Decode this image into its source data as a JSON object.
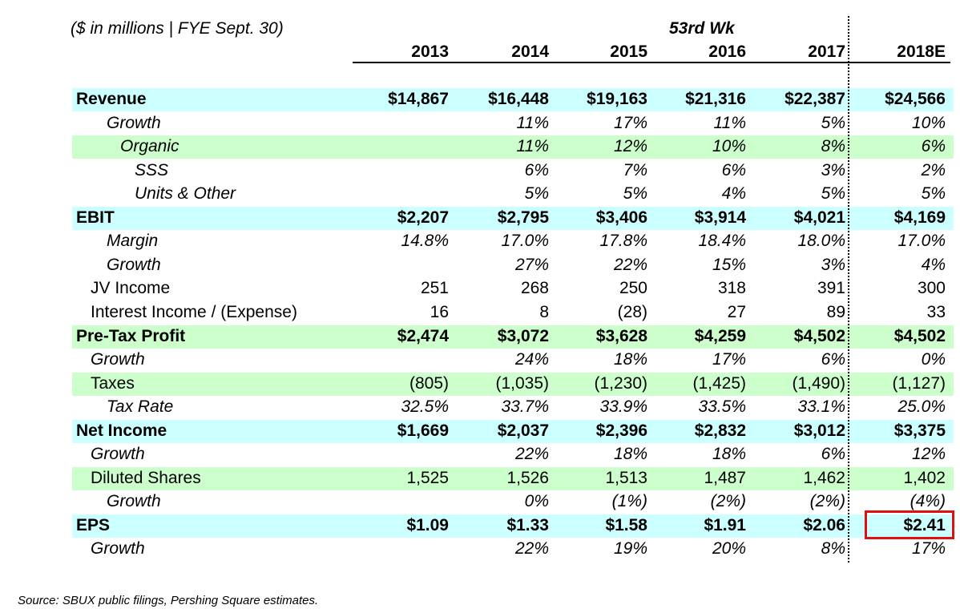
{
  "note": "($ in millions | FYE Sept. 30)",
  "week_note": "53rd Wk",
  "columns": [
    "2013",
    "2014",
    "2015",
    "2016",
    "2017",
    "2018E"
  ],
  "rows": [
    {
      "label": "Revenue",
      "cells": [
        "$14,867",
        "$16,448",
        "$19,163",
        "$21,316",
        "$22,387",
        "$24,566"
      ]
    },
    {
      "label": "Growth",
      "cells": [
        null,
        "11%",
        "17%",
        "11%",
        "5%",
        "10%"
      ]
    },
    {
      "label": "Organic",
      "cells": [
        null,
        "11%",
        "12%",
        "10%",
        "8%",
        "6%"
      ]
    },
    {
      "label": "SSS",
      "cells": [
        null,
        "6%",
        "7%",
        "6%",
        "3%",
        "2%"
      ]
    },
    {
      "label": "Units & Other",
      "cells": [
        null,
        "5%",
        "5%",
        "4%",
        "5%",
        "5%"
      ]
    },
    {
      "label": "EBIT",
      "cells": [
        "$2,207",
        "$2,795",
        "$3,406",
        "$3,914",
        "$4,021",
        "$4,169"
      ]
    },
    {
      "label": "Margin",
      "cells": [
        "14.8%",
        "17.0%",
        "17.8%",
        "18.4%",
        "18.0%",
        "17.0%"
      ]
    },
    {
      "label": "Growth",
      "cells": [
        null,
        "27%",
        "22%",
        "15%",
        "3%",
        "4%"
      ]
    },
    {
      "label": "JV Income",
      "cells": [
        "251",
        "268",
        "250",
        "318",
        "391",
        "300"
      ]
    },
    {
      "label": "Interest Income / (Expense)",
      "cells": [
        "16",
        "8",
        "(28)",
        "27",
        "89",
        "33"
      ]
    },
    {
      "label": "Pre-Tax Profit",
      "cells": [
        "$2,474",
        "$3,072",
        "$3,628",
        "$4,259",
        "$4,502",
        "$4,502"
      ]
    },
    {
      "label": "Growth",
      "cells": [
        null,
        "24%",
        "18%",
        "17%",
        "6%",
        "0%"
      ]
    },
    {
      "label": "Taxes",
      "cells": [
        "(805)",
        "(1,035)",
        "(1,230)",
        "(1,425)",
        "(1,490)",
        "(1,127)"
      ]
    },
    {
      "label": "Tax Rate",
      "cells": [
        "32.5%",
        "33.7%",
        "33.9%",
        "33.5%",
        "33.1%",
        "25.0%"
      ]
    },
    {
      "label": "Net Income",
      "cells": [
        "$1,669",
        "$2,037",
        "$2,396",
        "$2,832",
        "$3,012",
        "$3,375"
      ]
    },
    {
      "label": "Growth",
      "cells": [
        null,
        "22%",
        "18%",
        "18%",
        "6%",
        "12%"
      ]
    },
    {
      "label": "Diluted Shares",
      "cells": [
        "1,525",
        "1,526",
        "1,513",
        "1,487",
        "1,462",
        "1,402"
      ]
    },
    {
      "label": "Growth",
      "cells": [
        null,
        "0%",
        "(1%)",
        "(2%)",
        "(2%)",
        "(4%)"
      ]
    },
    {
      "label": "EPS",
      "cells": [
        "$1.09",
        "$1.33",
        "$1.58",
        "$1.91",
        "$2.06",
        "$2.41"
      ]
    },
    {
      "label": "Growth",
      "cells": [
        null,
        "22%",
        "19%",
        "20%",
        "8%",
        "17%"
      ]
    }
  ],
  "source": "Source: SBUX public filings, Pershing Square estimates."
}
